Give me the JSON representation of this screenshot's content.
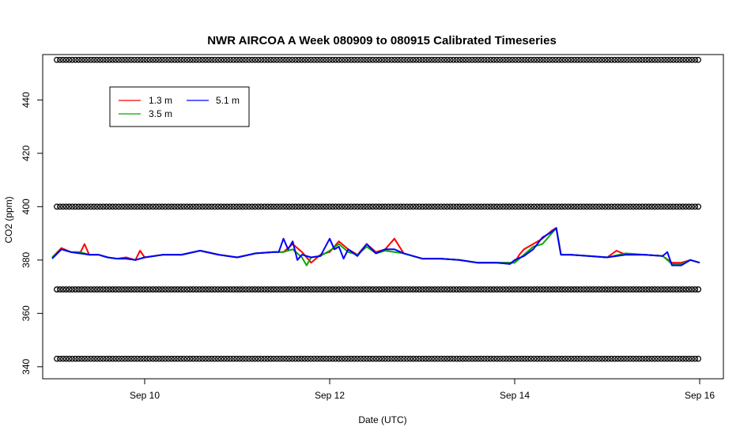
{
  "chart_data": {
    "type": "line",
    "title": "NWR AIRCOA A  Week 080909 to 080915  Calibrated Timeseries",
    "xlabel": "Date (UTC)",
    "ylabel": "CO2 (ppm)",
    "xlim": [
      9.0,
      16.0
    ],
    "ylim": [
      335.5,
      457
    ],
    "x_ticks": [
      {
        "value": 10,
        "label": "Sep 10"
      },
      {
        "value": 12,
        "label": "Sep 12"
      },
      {
        "value": 14,
        "label": "Sep 14"
      },
      {
        "value": 16,
        "label": "Sep 16"
      }
    ],
    "y_ticks": [
      340,
      360,
      380,
      400,
      420,
      440
    ],
    "legend": {
      "position": "top-left",
      "entries": [
        {
          "label": "1.3 m",
          "color": "#ff0000"
        },
        {
          "label": "3.5 m",
          "color": "#00aa00"
        },
        {
          "label": "5.1 m",
          "color": "#0000ff"
        }
      ]
    },
    "reference_markers": {
      "marker": "open-circle",
      "color": "#000000",
      "levels": [
        455,
        400,
        369,
        343
      ],
      "x_start": 9.05,
      "x_end": 16.0,
      "spacing_days": 0.0335
    },
    "series": [
      {
        "name": "1.3 m",
        "color": "#ff0000",
        "x": [
          9.0,
          9.1,
          9.2,
          9.3,
          9.35,
          9.4,
          9.5,
          9.6,
          9.7,
          9.8,
          9.9,
          9.95,
          10.0,
          10.2,
          10.4,
          10.6,
          10.8,
          11.0,
          11.2,
          11.4,
          11.5,
          11.6,
          11.7,
          11.8,
          11.9,
          12.0,
          12.1,
          12.2,
          12.3,
          12.4,
          12.5,
          12.6,
          12.7,
          12.8,
          13.0,
          13.2,
          13.4,
          13.6,
          13.8,
          14.0,
          14.05,
          14.1,
          14.2,
          14.3,
          14.4,
          14.45,
          14.5,
          14.6,
          14.8,
          15.0,
          15.1,
          15.2,
          15.4,
          15.6,
          15.7,
          15.8,
          15.9,
          16.0
        ],
        "y": [
          381,
          384.5,
          383,
          382.5,
          386,
          382,
          382,
          381,
          380.5,
          381,
          380,
          383.5,
          381,
          382,
          382,
          383.5,
          382,
          381,
          382.5,
          383,
          383,
          386,
          383,
          379,
          382,
          383,
          387,
          384,
          382,
          386,
          383,
          384,
          388,
          382.5,
          380.5,
          380.5,
          380,
          379,
          379,
          379,
          382,
          384,
          386,
          388,
          391,
          392,
          382,
          382,
          381.5,
          381,
          383.5,
          382,
          382,
          381.5,
          379,
          379,
          380,
          379
        ]
      },
      {
        "name": "3.5 m",
        "color": "#00aa00",
        "x": [
          9.0,
          9.1,
          9.2,
          9.3,
          9.4,
          9.5,
          9.6,
          9.7,
          9.8,
          9.9,
          10.0,
          10.2,
          10.4,
          10.6,
          10.8,
          11.0,
          11.2,
          11.4,
          11.5,
          11.6,
          11.7,
          11.75,
          11.8,
          11.9,
          12.0,
          12.1,
          12.2,
          12.3,
          12.4,
          12.5,
          12.6,
          12.7,
          12.8,
          13.0,
          13.2,
          13.4,
          13.6,
          13.8,
          14.0,
          14.1,
          14.2,
          14.3,
          14.4,
          14.45,
          14.5,
          14.6,
          14.8,
          15.0,
          15.2,
          15.4,
          15.6,
          15.7,
          15.8,
          15.9,
          16.0
        ],
        "y": [
          381,
          384,
          383,
          383,
          382,
          382,
          381,
          380.5,
          380.5,
          380,
          381,
          382,
          382,
          383.5,
          382,
          381,
          382.5,
          383,
          383,
          384,
          381,
          378,
          381,
          381.5,
          383.5,
          386,
          383,
          382,
          385,
          382.5,
          383.5,
          383,
          382.5,
          380.5,
          380.5,
          380,
          379,
          379,
          379,
          382,
          385,
          386,
          390,
          392,
          382,
          382,
          381.5,
          381,
          382.5,
          382,
          381.5,
          378.5,
          378.5,
          380,
          379
        ]
      },
      {
        "name": "5.1 m",
        "color": "#0000ff",
        "x": [
          9.0,
          9.1,
          9.2,
          9.3,
          9.4,
          9.5,
          9.6,
          9.7,
          9.8,
          9.9,
          10.0,
          10.2,
          10.4,
          10.6,
          10.8,
          11.0,
          11.2,
          11.4,
          11.45,
          11.5,
          11.55,
          11.6,
          11.65,
          11.7,
          11.8,
          11.9,
          12.0,
          12.05,
          12.1,
          12.15,
          12.2,
          12.3,
          12.4,
          12.5,
          12.6,
          12.7,
          12.8,
          13.0,
          13.2,
          13.4,
          13.6,
          13.8,
          13.95,
          14.0,
          14.1,
          14.2,
          14.3,
          14.4,
          14.45,
          14.5,
          14.6,
          14.8,
          15.0,
          15.2,
          15.4,
          15.6,
          15.65,
          15.7,
          15.8,
          15.9,
          16.0
        ],
        "y": [
          380.5,
          384,
          383,
          382.5,
          382,
          382,
          381,
          380.5,
          380.5,
          380,
          381,
          382,
          382,
          383.5,
          382,
          381,
          382.5,
          383,
          383,
          388,
          384,
          387,
          380,
          382,
          381,
          381.5,
          388,
          384,
          385,
          380.5,
          384,
          381.5,
          386,
          382.5,
          384,
          384,
          382.5,
          380.5,
          380.5,
          380,
          379,
          379,
          378.5,
          380,
          381.5,
          384,
          388.5,
          390.5,
          392,
          382,
          382,
          381.5,
          381,
          382,
          382,
          381.5,
          383,
          378,
          378,
          380,
          379
        ]
      }
    ]
  }
}
